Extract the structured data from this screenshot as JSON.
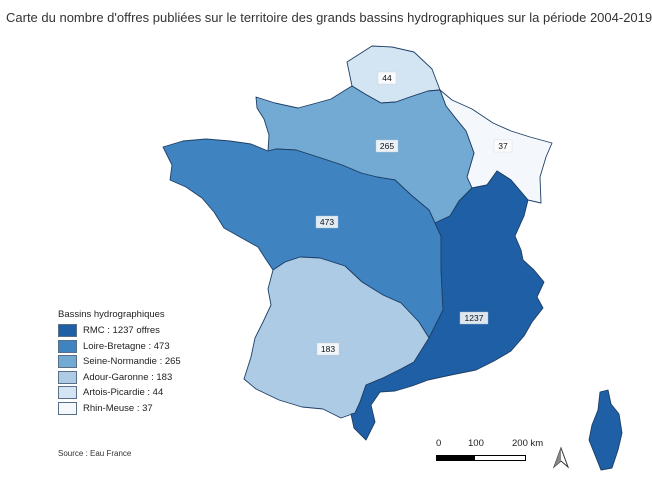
{
  "title": "Carte du nombre d'offres publiées sur le territoire des grands bassins hydrographiques sur la période 2004-2019",
  "legend": {
    "title": "Bassins hydrographiques",
    "items": [
      {
        "label": "RMC : 1237 offres",
        "color": "#1f5fa5"
      },
      {
        "label": "Loire-Bretagne : 473",
        "color": "#3f84c0"
      },
      {
        "label": "Seine-Normandie : 265",
        "color": "#73aad3"
      },
      {
        "label": "Adour-Garonne : 183",
        "color": "#adcbe5"
      },
      {
        "label": "Artois-Picardie : 44",
        "color": "#d3e4f3"
      },
      {
        "label": "Rhin-Meuse : 37",
        "color": "#f4f8fc"
      }
    ]
  },
  "map_values": {
    "rmc": "1237",
    "loire_bretagne": "473",
    "seine_normandie": "265",
    "adour_garonne": "183",
    "artois_picardie": "44",
    "rhin_meuse": "37"
  },
  "source": "Source : Eau France",
  "scale": {
    "labels": [
      "0",
      "100",
      "200 km"
    ]
  }
}
